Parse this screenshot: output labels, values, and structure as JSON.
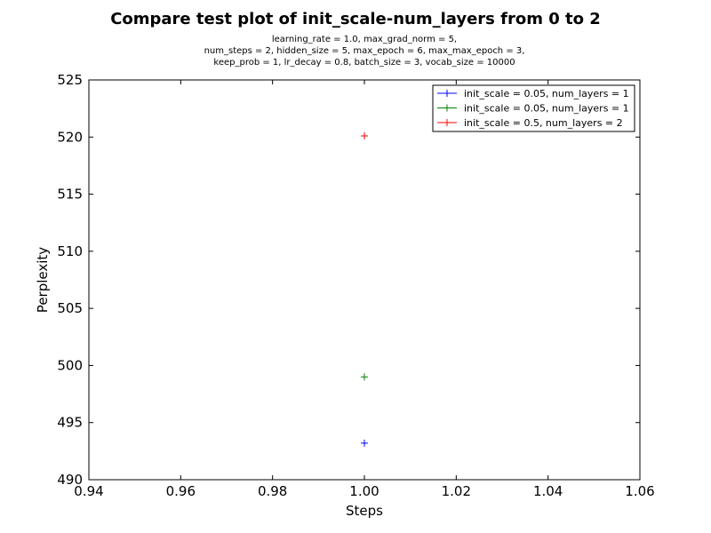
{
  "chart_data": {
    "type": "scatter",
    "title": "Compare test plot of init_scale-num_layers from 0 to 2",
    "subtitle_lines": [
      "learning_rate = 1.0, max_grad_norm = 5,",
      "num_steps = 2, hidden_size = 5, max_epoch = 6, max_max_epoch = 3,",
      "keep_prob = 1, lr_decay = 0.8, batch_size = 3, vocab_size = 10000"
    ],
    "xlabel": "Steps",
    "ylabel": "Perplexity",
    "xlim": [
      0.94,
      1.06
    ],
    "ylim": [
      490,
      525
    ],
    "xticks": [
      "0.94",
      "0.96",
      "0.98",
      "1.00",
      "1.02",
      "1.04",
      "1.06"
    ],
    "yticks": [
      "490",
      "495",
      "500",
      "505",
      "510",
      "515",
      "520",
      "525"
    ],
    "legend_position": "top-right",
    "series": [
      {
        "name": "init_scale = 0.05, num_layers = 1",
        "color": "#0000ff",
        "x": [
          1.0
        ],
        "y": [
          493.2
        ]
      },
      {
        "name": "init_scale = 0.05, num_layers = 1",
        "color": "#008000",
        "x": [
          1.0
        ],
        "y": [
          499.0
        ]
      },
      {
        "name": "init_scale = 0.5, num_layers = 2",
        "color": "#ff0000",
        "x": [
          1.0
        ],
        "y": [
          520.1
        ]
      }
    ]
  }
}
